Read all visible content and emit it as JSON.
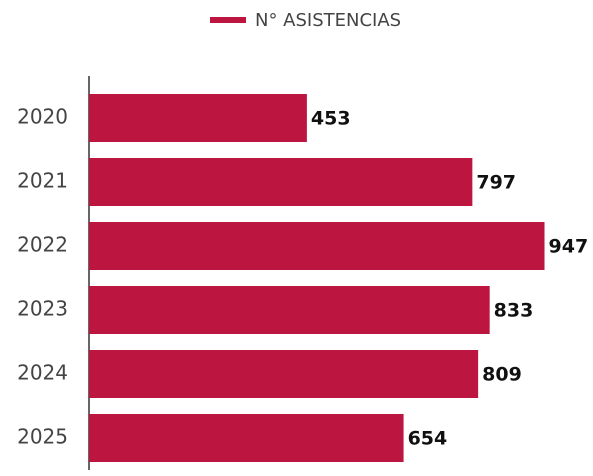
{
  "chart_data": {
    "type": "bar",
    "orientation": "horizontal",
    "categories": [
      "2020",
      "2021",
      "2022",
      "2023",
      "2024",
      "2025"
    ],
    "series": [
      {
        "name": "N° ASISTENCIAS",
        "color": "#bb1540",
        "values": [
          453,
          797,
          947,
          833,
          809,
          654
        ]
      }
    ],
    "xlim": [
      0,
      1000
    ],
    "legend": "top"
  }
}
